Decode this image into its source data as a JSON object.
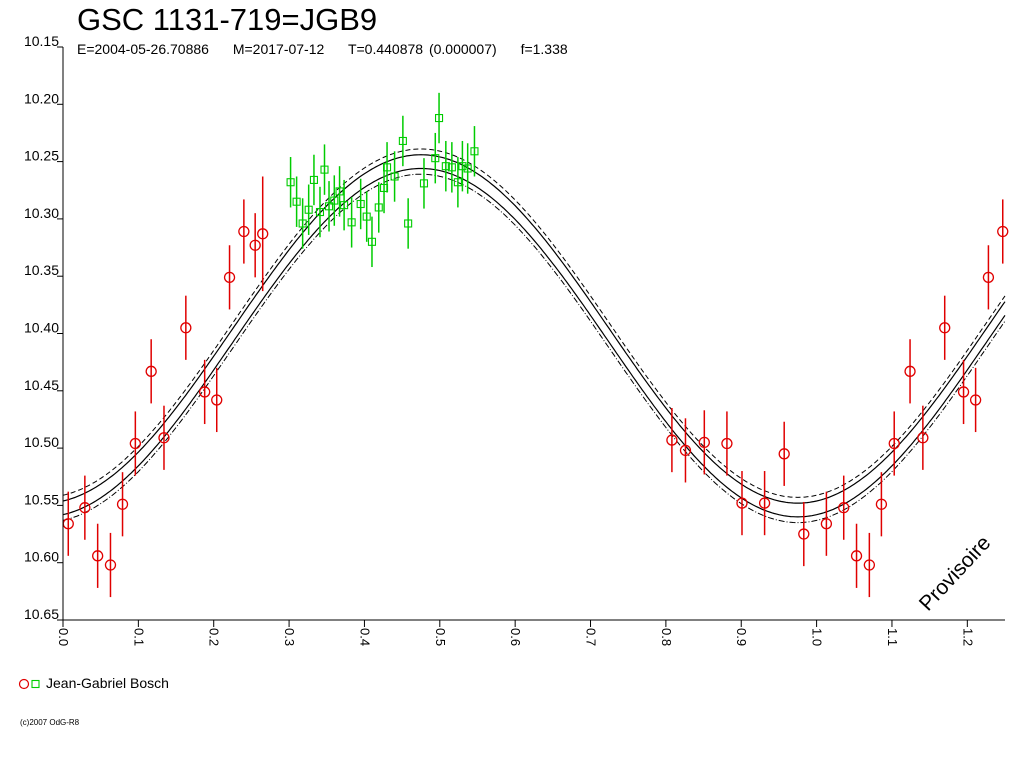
{
  "header": {
    "title": "GSC 1131-719=JGB9",
    "epoch": "E=2004-05-26.70886",
    "modified": "M=2017-07-12",
    "period": "T=0.440878 (0.000007)",
    "factor": "f=1.338"
  },
  "watermark": "Provisoire",
  "copyright": "(c)2007 OdG-R8",
  "colors": {
    "model_curve": "#000000",
    "series_red": "#e00000",
    "series_green": "#00cc00",
    "axis": "#000000",
    "background": "#ffffff"
  },
  "chart_data": {
    "type": "scatter",
    "xlim": [
      0.0,
      1.25
    ],
    "ylim": [
      10.65,
      10.15
    ],
    "y_inverted": true,
    "x_ticks": [
      "0.0",
      "0.1",
      "0.2",
      "0.3",
      "0.4",
      "0.5",
      "0.6",
      "0.7",
      "0.8",
      "0.9",
      "1.0",
      "1.1",
      "1.2"
    ],
    "y_ticks": [
      "10.15",
      "10.20",
      "10.25",
      "10.30",
      "10.35",
      "10.40",
      "10.45",
      "10.50",
      "10.55",
      "10.60",
      "10.65"
    ],
    "grid": false,
    "legend": {
      "position": "bottom-left",
      "label": "Jean-Gabriel Bosch",
      "markers": [
        "circle-red",
        "square-green"
      ]
    },
    "model": {
      "function": "sine",
      "mean": 10.402,
      "amplitude": 0.152,
      "max_brightness_phase": 0.475,
      "period_phase": 1.0,
      "envelope": [
        0.006,
        0.011
      ]
    },
    "series": [
      {
        "marker": "circle",
        "color": "#e00000",
        "points": [
          [
            0.007,
            10.566,
            0.028
          ],
          [
            0.029,
            10.552,
            0.028
          ],
          [
            0.046,
            10.594,
            0.028
          ],
          [
            0.063,
            10.602,
            0.028
          ],
          [
            0.079,
            10.549,
            0.028
          ],
          [
            0.096,
            10.496,
            0.028
          ],
          [
            0.117,
            10.433,
            0.028
          ],
          [
            0.134,
            10.491,
            0.028
          ],
          [
            0.163,
            10.395,
            0.028
          ],
          [
            0.188,
            10.451,
            0.028
          ],
          [
            0.204,
            10.458,
            0.028
          ],
          [
            0.221,
            10.351,
            0.028
          ],
          [
            0.24,
            10.311,
            0.028
          ],
          [
            0.255,
            10.323,
            0.028
          ],
          [
            0.265,
            10.313,
            0.05
          ],
          [
            0.808,
            10.493,
            0.028
          ],
          [
            0.826,
            10.502,
            0.028
          ],
          [
            0.851,
            10.495,
            0.028
          ],
          [
            0.881,
            10.496,
            0.028
          ],
          [
            0.901,
            10.548,
            0.028
          ],
          [
            0.931,
            10.548,
            0.028
          ],
          [
            0.957,
            10.505,
            0.028
          ],
          [
            0.983,
            10.575,
            0.028
          ],
          [
            1.013,
            10.566,
            0.028
          ],
          [
            1.036,
            10.552,
            0.028
          ],
          [
            1.053,
            10.594,
            0.028
          ],
          [
            1.07,
            10.602,
            0.028
          ],
          [
            1.086,
            10.549,
            0.028
          ],
          [
            1.103,
            10.496,
            0.028
          ],
          [
            1.124,
            10.433,
            0.028
          ],
          [
            1.141,
            10.491,
            0.028
          ],
          [
            1.17,
            10.395,
            0.028
          ],
          [
            1.195,
            10.451,
            0.028
          ],
          [
            1.211,
            10.458,
            0.028
          ],
          [
            1.228,
            10.351,
            0.028
          ],
          [
            1.247,
            10.311,
            0.028
          ]
        ]
      },
      {
        "marker": "square",
        "color": "#00cc00",
        "points": [
          [
            0.302,
            10.268,
            0.022
          ],
          [
            0.31,
            10.285,
            0.022
          ],
          [
            0.318,
            10.304,
            0.022
          ],
          [
            0.326,
            10.292,
            0.022
          ],
          [
            0.333,
            10.266,
            0.022
          ],
          [
            0.341,
            10.294,
            0.022
          ],
          [
            0.347,
            10.257,
            0.022
          ],
          [
            0.353,
            10.289,
            0.022
          ],
          [
            0.36,
            10.284,
            0.022
          ],
          [
            0.367,
            10.276,
            0.022
          ],
          [
            0.373,
            10.288,
            0.022
          ],
          [
            0.383,
            10.303,
            0.022
          ],
          [
            0.395,
            10.287,
            0.022
          ],
          [
            0.403,
            10.298,
            0.022
          ],
          [
            0.41,
            10.32,
            0.022
          ],
          [
            0.419,
            10.29,
            0.022
          ],
          [
            0.426,
            10.273,
            0.022
          ],
          [
            0.43,
            10.255,
            0.022
          ],
          [
            0.44,
            10.263,
            0.022
          ],
          [
            0.451,
            10.232,
            0.022
          ],
          [
            0.458,
            10.304,
            0.022
          ],
          [
            0.479,
            10.269,
            0.022
          ],
          [
            0.494,
            10.247,
            0.022
          ],
          [
            0.499,
            10.212,
            0.022
          ],
          [
            0.508,
            10.254,
            0.022
          ],
          [
            0.516,
            10.255,
            0.022
          ],
          [
            0.524,
            10.268,
            0.022
          ],
          [
            0.53,
            10.254,
            0.022
          ],
          [
            0.537,
            10.256,
            0.022
          ],
          [
            0.546,
            10.241,
            0.022
          ]
        ]
      }
    ]
  }
}
